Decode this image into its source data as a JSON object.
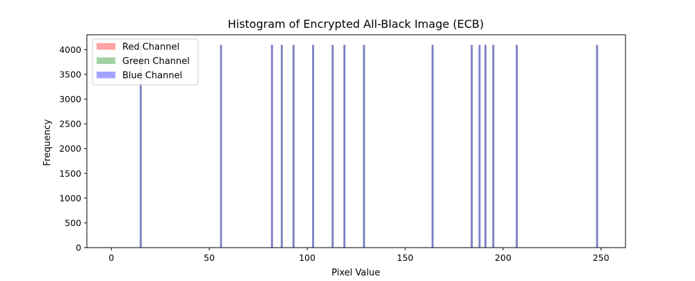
{
  "chart_data": {
    "type": "bar",
    "title": "Histogram of Encrypted All-Black Image (ECB)",
    "xlabel": "Pixel Value",
    "ylabel": "Frequency",
    "xlim": [
      -12.5,
      262.5
    ],
    "ylim": [
      0,
      4300
    ],
    "xticks": [
      0,
      50,
      100,
      150,
      200,
      250
    ],
    "yticks": [
      0,
      500,
      1000,
      1500,
      2000,
      2500,
      3000,
      3500,
      4000
    ],
    "grid": false,
    "legend_position": "top-left",
    "bin_width": 1,
    "colors": {
      "red": "#ff6666",
      "green": "#66b266",
      "blue": "#6666ff",
      "overlap": "#2b2b8f"
    },
    "series": [
      {
        "name": "Red Channel",
        "color": "#ff6666",
        "x": [
          15,
          56,
          82,
          87,
          93,
          103,
          113,
          119,
          129,
          164,
          184,
          188,
          191,
          195,
          207,
          248
        ],
        "values": [
          4096,
          4096,
          4096,
          4096,
          4096,
          4096,
          4096,
          4096,
          4096,
          4096,
          4096,
          4096,
          4096,
          4096,
          4096,
          4096
        ]
      },
      {
        "name": "Green Channel",
        "color": "#66b266",
        "x": [
          15,
          56,
          82,
          87,
          93,
          103,
          113,
          119,
          129,
          164,
          184,
          188,
          191,
          195,
          207,
          248
        ],
        "values": [
          4096,
          4096,
          4096,
          4096,
          4096,
          4096,
          4096,
          4096,
          4096,
          4096,
          4096,
          4096,
          4096,
          4096,
          4096,
          4096
        ]
      },
      {
        "name": "Blue Channel",
        "color": "#6666ff",
        "x": [
          15,
          56,
          82,
          87,
          93,
          103,
          113,
          119,
          129,
          164,
          184,
          188,
          191,
          195,
          207,
          248
        ],
        "values": [
          4096,
          4096,
          4096,
          4096,
          4096,
          4096,
          4096,
          4096,
          4096,
          4096,
          4096,
          4096,
          4096,
          4096,
          4096,
          4096
        ]
      }
    ]
  }
}
